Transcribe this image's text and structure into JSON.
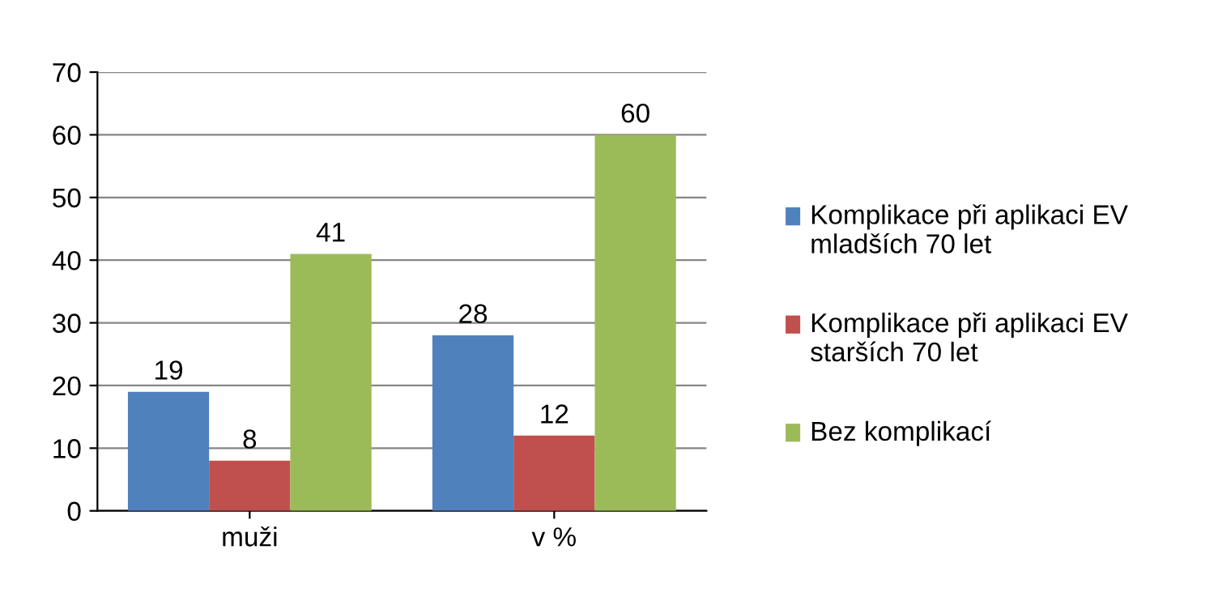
{
  "chart_data": {
    "type": "bar",
    "categories": [
      "muži",
      "v %"
    ],
    "series": [
      {
        "name": "Komplikace při aplikaci EV mladších 70 let",
        "color": "#4f81bd",
        "values": [
          19,
          28
        ]
      },
      {
        "name": "Komplikace při aplikaci EV starších 70 let",
        "color": "#c0504d",
        "values": [
          8,
          12
        ]
      },
      {
        "name": "Bez komplikací",
        "color": "#9bbb59",
        "values": [
          41,
          60
        ]
      }
    ],
    "ylim": [
      0,
      70
    ],
    "yticks": [
      0,
      10,
      20,
      30,
      40,
      50,
      60,
      70
    ],
    "grid": "y",
    "legend": "right",
    "data_labels": true
  }
}
